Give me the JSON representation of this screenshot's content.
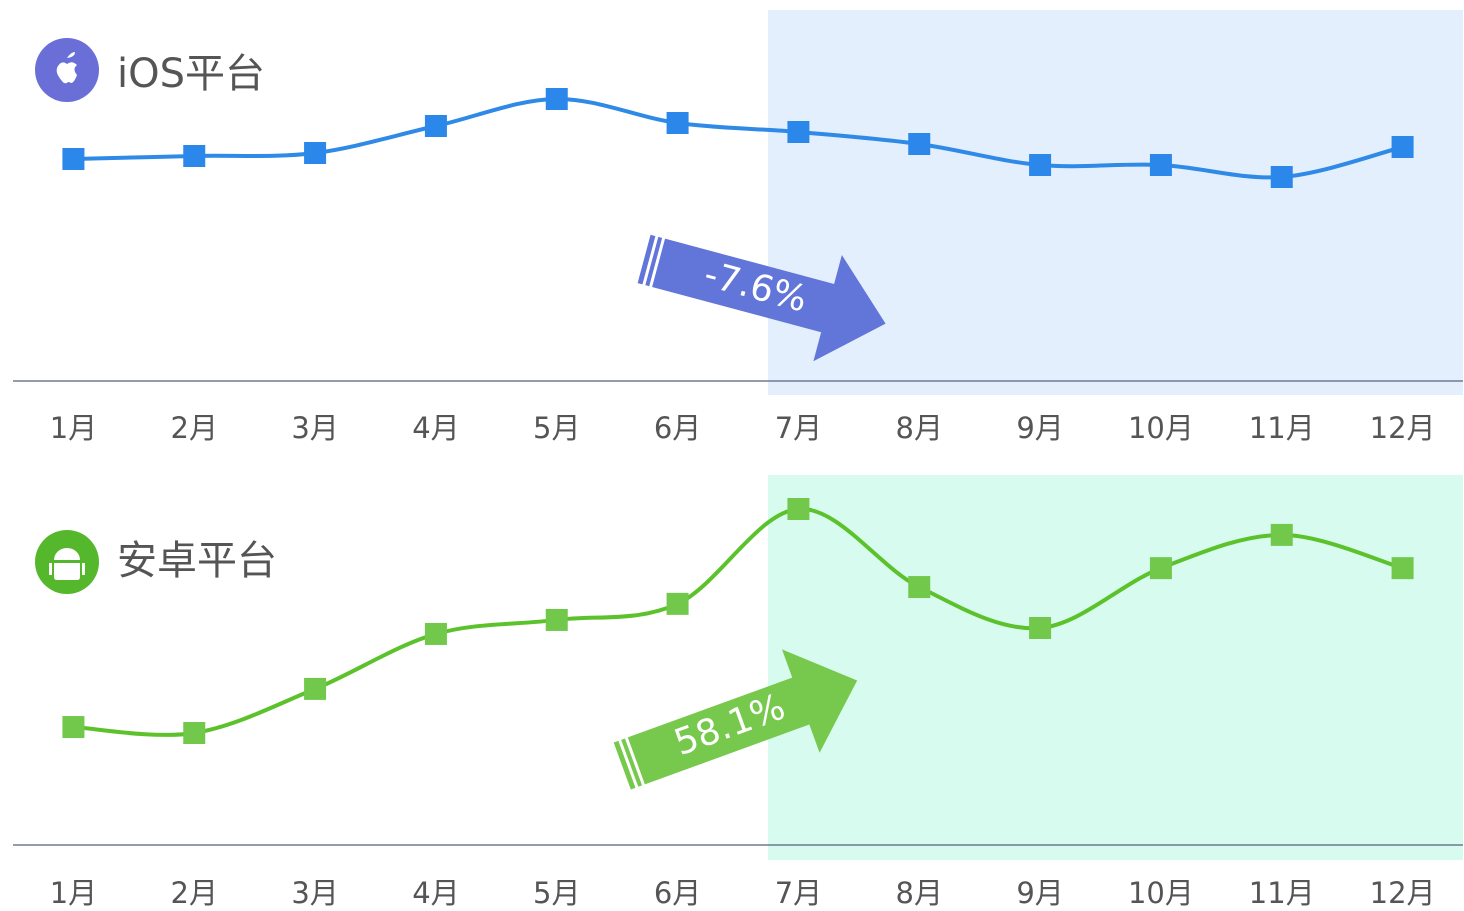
{
  "chart_data": [
    {
      "type": "line",
      "title": "iOS平台",
      "annotation": "-7.6%",
      "categories": [
        "1月",
        "2月",
        "3月",
        "4月",
        "5月",
        "6月",
        "7月",
        "8月",
        "9月",
        "10月",
        "11月",
        "12月"
      ],
      "series": [
        {
          "color": "#2e8ae6",
          "values": [
            74,
            75,
            76,
            85,
            94,
            86,
            83,
            79,
            72,
            72,
            68,
            78
          ]
        }
      ],
      "ylim": [
        0,
        100
      ]
    },
    {
      "type": "line",
      "title": "安卓平台",
      "annotation": "58.1%",
      "categories": [
        "1月",
        "2月",
        "3月",
        "4月",
        "5月",
        "6月",
        "7月",
        "8月",
        "9月",
        "10月",
        "11月",
        "12月"
      ],
      "series": [
        {
          "color": "#5cc22c",
          "values": [
            33.7,
            32,
            44.6,
            60.3,
            64.3,
            68.9,
            96,
            73.7,
            62,
            79.1,
            88.6,
            79.1
          ]
        }
      ],
      "ylim": [
        0,
        100
      ]
    }
  ]
}
